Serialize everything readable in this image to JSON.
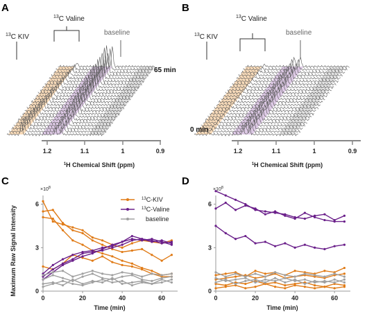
{
  "panels": {
    "A": {
      "letter": "A",
      "time_top": "65 min",
      "labels": {
        "kiv_sup": "13",
        "kiv": "C KIV",
        "valine_sup": "13",
        "valine": "C Valine",
        "baseline": "baseline"
      },
      "ticks": [
        "1.2",
        "1.1",
        "1",
        "0.9"
      ],
      "xlabel_sup": "1",
      "xlabel": "H Chemical Shift (ppm)"
    },
    "B": {
      "letter": "B",
      "time_bottom": "0 min",
      "labels": {
        "kiv_sup": "13",
        "kiv": "C KIV",
        "valine_sup": "13",
        "valine": "C Valine",
        "baseline": "baseline"
      },
      "ticks": [
        "1.2",
        "1.1",
        "1",
        "0.9"
      ],
      "xlabel_sup": "1",
      "xlabel": "H Chemical Shift (ppm)"
    }
  },
  "colors": {
    "kiv": "#e07b17",
    "valine": "#6a1f8a",
    "baseline": "#a0a0a0",
    "kiv_band": "#f6d3ad",
    "valine_band": "#d7bfe0",
    "baseline_band": "#dcdcdc"
  },
  "chart_data": [
    {
      "panel": "C",
      "type": "line",
      "ylabel": "Maximum Raw Signal Intensity",
      "xlabel": "Time (min)",
      "y_multiplier": "×10",
      "y_exponent": "8",
      "xlim": [
        0,
        68
      ],
      "ylim": [
        0,
        6.6
      ],
      "xticks": [
        "0",
        "20",
        "40",
        "60"
      ],
      "yticks": [
        "0",
        "3",
        "6"
      ],
      "legend": [
        {
          "sup": "13",
          "name": "C-KIV",
          "color": "#e07b17"
        },
        {
          "sup": "13",
          "name": "C-Valine",
          "color": "#6a1f8a"
        },
        {
          "sup": "",
          "name": "baseline",
          "color": "#a0a0a0"
        }
      ],
      "series": [
        {
          "group": "kiv",
          "x": [
            0,
            5,
            10,
            15,
            20,
            25,
            30,
            35,
            40,
            45,
            50,
            55,
            60,
            65
          ],
          "y": [
            5.5,
            5.6,
            4.7,
            4.2,
            4.0,
            3.5,
            3.2,
            2.9,
            2.7,
            2.8,
            2.9,
            2.5,
            2.1,
            2.5
          ]
        },
        {
          "group": "kiv",
          "x": [
            0,
            5,
            10,
            15,
            20,
            25,
            30,
            35,
            40,
            45,
            50,
            55,
            60,
            65
          ],
          "y": [
            6.2,
            4.8,
            4.6,
            4.4,
            4.2,
            3.7,
            3.5,
            3.2,
            3.0,
            3.3,
            3.5,
            3.4,
            3.3,
            3.5
          ]
        },
        {
          "group": "kiv",
          "x": [
            0,
            5,
            10,
            15,
            20,
            25,
            30,
            35,
            40,
            45,
            50,
            55,
            60,
            65
          ],
          "y": [
            5.1,
            5.0,
            4.2,
            3.5,
            3.2,
            2.8,
            2.6,
            2.4,
            2.1,
            1.9,
            1.6,
            1.4,
            1.1,
            1.2
          ]
        },
        {
          "group": "kiv",
          "x": [
            0,
            5,
            10,
            15,
            20,
            25,
            30,
            35,
            40,
            45,
            50,
            55,
            60,
            65
          ],
          "y": [
            1.7,
            1.5,
            1.9,
            2.5,
            2.3,
            2.1,
            2.4,
            2.0,
            1.8,
            1.7,
            1.5,
            1.2,
            1.0,
            1.0
          ]
        },
        {
          "group": "valine",
          "x": [
            0,
            5,
            10,
            15,
            20,
            25,
            30,
            35,
            40,
            45,
            50,
            55,
            60,
            65
          ],
          "y": [
            1.2,
            1.8,
            2.2,
            2.5,
            2.7,
            2.8,
            3.0,
            3.1,
            3.4,
            3.8,
            3.6,
            3.5,
            3.3,
            3.4
          ]
        },
        {
          "group": "valine",
          "x": [
            0,
            5,
            10,
            15,
            20,
            25,
            30,
            35,
            40,
            45,
            50,
            55,
            60,
            65
          ],
          "y": [
            1.0,
            1.5,
            1.9,
            2.2,
            2.6,
            2.7,
            2.8,
            3.0,
            3.2,
            3.5,
            3.6,
            3.4,
            3.5,
            3.3
          ]
        },
        {
          "group": "valine",
          "x": [
            0,
            5,
            10,
            15,
            20,
            25,
            30,
            35,
            40,
            45,
            50,
            55,
            60,
            65
          ],
          "y": [
            0.8,
            1.3,
            1.8,
            2.1,
            2.4,
            2.6,
            2.9,
            3.2,
            3.4,
            3.6,
            3.5,
            3.6,
            3.4,
            3.2
          ]
        },
        {
          "group": "baseline",
          "x": [
            0,
            5,
            10,
            15,
            20,
            25,
            30,
            35,
            40,
            45,
            50,
            55,
            60,
            65
          ],
          "y": [
            0.8,
            1.1,
            0.9,
            0.7,
            1.0,
            1.2,
            0.9,
            0.8,
            1.0,
            1.1,
            0.8,
            0.7,
            0.9,
            1.0
          ]
        },
        {
          "group": "baseline",
          "x": [
            0,
            5,
            10,
            15,
            20,
            25,
            30,
            35,
            40,
            45,
            50,
            55,
            60,
            65
          ],
          "y": [
            0.5,
            0.6,
            0.4,
            0.8,
            0.5,
            0.7,
            0.6,
            0.9,
            0.5,
            0.6,
            0.7,
            0.5,
            0.6,
            0.8
          ]
        },
        {
          "group": "baseline",
          "x": [
            0,
            5,
            10,
            15,
            20,
            25,
            30,
            35,
            40,
            45,
            50,
            55,
            60,
            65
          ],
          "y": [
            1.1,
            1.3,
            1.4,
            1.0,
            1.2,
            1.4,
            1.2,
            1.1,
            1.3,
            1.2,
            1.0,
            1.2,
            1.1,
            1.2
          ]
        },
        {
          "group": "baseline",
          "x": [
            0,
            5,
            10,
            15,
            20,
            25,
            30,
            35,
            40,
            45,
            50,
            55,
            60,
            65
          ],
          "y": [
            0.3,
            0.5,
            0.7,
            0.5,
            0.4,
            0.6,
            0.8,
            0.6,
            0.7,
            0.4,
            0.6,
            0.5,
            0.8,
            0.6
          ]
        }
      ]
    },
    {
      "panel": "D",
      "type": "line",
      "xlabel": "Time (min)",
      "y_multiplier": "×10",
      "y_exponent": "8",
      "xlim": [
        0,
        68
      ],
      "ylim": [
        0,
        6.6
      ],
      "xticks": [
        "0",
        "20",
        "40",
        "60"
      ],
      "yticks": [
        "0",
        "3",
        "6"
      ],
      "series": [
        {
          "group": "valine",
          "x": [
            0,
            5,
            10,
            15,
            20,
            25,
            30,
            35,
            40,
            45,
            50,
            55,
            60,
            65
          ],
          "y": [
            6.9,
            6.6,
            6.3,
            6.0,
            5.6,
            5.5,
            5.4,
            5.3,
            5.1,
            5.0,
            5.2,
            5.3,
            4.9,
            5.2
          ]
        },
        {
          "group": "valine",
          "x": [
            0,
            5,
            10,
            15,
            20,
            25,
            30,
            35,
            40,
            45,
            50,
            55,
            60,
            65
          ],
          "y": [
            5.7,
            6.1,
            5.6,
            5.9,
            5.7,
            5.3,
            5.5,
            5.2,
            5.0,
            5.4,
            5.1,
            4.9,
            4.8,
            4.8
          ]
        },
        {
          "group": "valine",
          "x": [
            0,
            5,
            10,
            15,
            20,
            25,
            30,
            35,
            40,
            45,
            50,
            55,
            60,
            65
          ],
          "y": [
            4.5,
            4.0,
            3.6,
            3.8,
            3.3,
            3.4,
            3.1,
            3.3,
            3.0,
            3.2,
            3.0,
            2.9,
            3.1,
            3.2
          ]
        },
        {
          "group": "kiv",
          "x": [
            0,
            5,
            10,
            15,
            20,
            25,
            30,
            35,
            40,
            45,
            50,
            55,
            60,
            65
          ],
          "y": [
            1.1,
            1.2,
            1.3,
            1.0,
            1.4,
            1.2,
            1.3,
            1.1,
            1.4,
            1.3,
            1.2,
            1.4,
            1.3,
            1.6
          ]
        },
        {
          "group": "kiv",
          "x": [
            0,
            5,
            10,
            15,
            20,
            25,
            30,
            35,
            40,
            45,
            50,
            55,
            60,
            65
          ],
          "y": [
            0.8,
            0.9,
            1.0,
            1.1,
            0.9,
            1.0,
            1.2,
            0.9,
            1.0,
            1.1,
            1.0,
            0.9,
            1.1,
            1.2
          ]
        },
        {
          "group": "kiv",
          "x": [
            0,
            5,
            10,
            15,
            20,
            25,
            30,
            35,
            40,
            45,
            50,
            55,
            60,
            65
          ],
          "y": [
            0.5,
            0.4,
            0.6,
            0.5,
            0.7,
            0.5,
            0.6,
            0.4,
            0.5,
            0.6,
            0.4,
            0.3,
            0.5,
            0.4
          ]
        },
        {
          "group": "kiv",
          "x": [
            0,
            5,
            10,
            15,
            20,
            25,
            30,
            35,
            40,
            45,
            50,
            55,
            60,
            65
          ],
          "y": [
            0.2,
            0.3,
            0.4,
            0.2,
            0.3,
            0.5,
            0.3,
            0.2,
            0.4,
            0.3,
            0.2,
            0.3,
            0.2,
            0.3
          ]
        },
        {
          "group": "baseline",
          "x": [
            0,
            5,
            10,
            15,
            20,
            25,
            30,
            35,
            40,
            45,
            50,
            55,
            60,
            65
          ],
          "y": [
            1.3,
            1.0,
            1.2,
            1.0,
            1.2,
            1.0,
            1.3,
            1.1,
            1.0,
            1.2,
            1.1,
            1.0,
            1.2,
            1.0
          ]
        },
        {
          "group": "baseline",
          "x": [
            0,
            5,
            10,
            15,
            20,
            25,
            30,
            35,
            40,
            45,
            50,
            55,
            60,
            65
          ],
          "y": [
            0.9,
            0.7,
            0.8,
            0.9,
            0.6,
            0.8,
            0.7,
            0.9,
            0.7,
            0.8,
            0.6,
            0.7,
            0.6,
            0.8
          ]
        },
        {
          "group": "baseline",
          "x": [
            0,
            5,
            10,
            15,
            20,
            25,
            30,
            35,
            40,
            45,
            50,
            55,
            60,
            65
          ],
          "y": [
            0.6,
            0.8,
            0.5,
            0.7,
            0.8,
            0.6,
            0.9,
            0.6,
            0.8,
            0.5,
            0.7,
            0.6,
            0.8,
            0.6
          ]
        }
      ]
    }
  ]
}
